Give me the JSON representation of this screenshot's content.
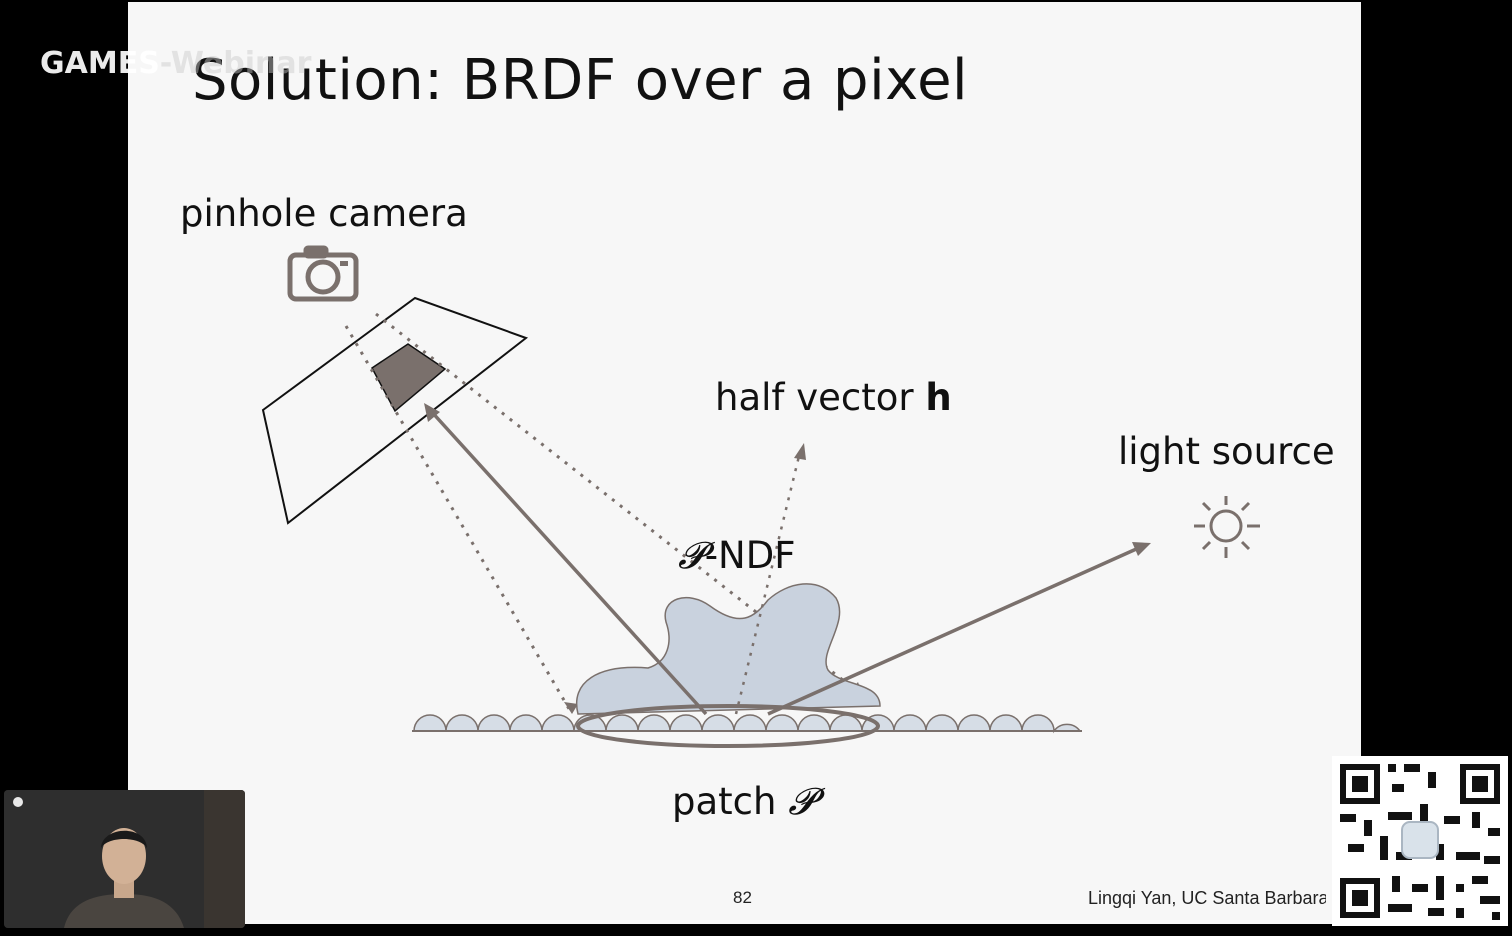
{
  "watermark": {
    "text": "GAMES",
    "faint_text": "-Webinar"
  },
  "slide": {
    "title": "Solution: BRDF over a pixel",
    "labels": {
      "camera": "pinhole camera",
      "half_vector_prefix": "half vector ",
      "half_vector_symbol": "h",
      "light_source": "light source",
      "ndf_symbol": "𝓟",
      "ndf_suffix": "-NDF",
      "patch_prefix": "patch ",
      "patch_symbol": "𝓟"
    },
    "page_number": "82",
    "credit": "Lingqi Yan, UC Santa Barbara"
  },
  "colors": {
    "slide_bg": "#f7f7f7",
    "diagram_gray": "#7a706c",
    "ndf_fill": "#c9d2de",
    "pixel_fill": "#7a706c"
  },
  "icons": [
    "camera-icon",
    "sun-icon",
    "webcam-feed",
    "qr-code"
  ]
}
